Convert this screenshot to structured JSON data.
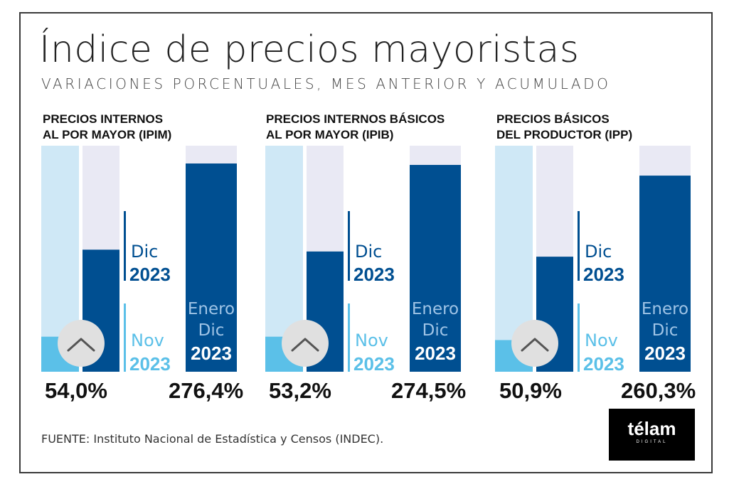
{
  "title": "Índice de precios mayoristas",
  "subtitle": "VARIACIONES PORCENTUALES, MES ANTERIOR Y ACUMULADO",
  "labels": {
    "dic": "Dic",
    "nov": "Nov",
    "year": "2023",
    "enero": "Enero"
  },
  "colors": {
    "light_blue": "#5bc0e8",
    "pale_blue": "#cfe8f6",
    "pale_lavender": "#e9e9f4",
    "dark_blue": "#004f91",
    "circle_gray": "#e0e0e0",
    "chevron": "#555555"
  },
  "chart_data": [
    {
      "type": "bar",
      "title_lines": [
        "PRECIOS INTERNOS",
        "AL POR MAYOR (IPIM)"
      ],
      "monthly": {
        "nov": 15.5,
        "dic": 54.0,
        "ylim": [
          0,
          100
        ]
      },
      "cumulative": {
        "value": 276.4,
        "ylim": [
          0,
          300
        ]
      },
      "value_labels": [
        "54,0%",
        "276,4%"
      ]
    },
    {
      "type": "bar",
      "title_lines": [
        "PRECIOS INTERNOS BÁSICOS",
        "AL POR MAYOR (IPIB)"
      ],
      "monthly": {
        "nov": 15.5,
        "dic": 53.2,
        "ylim": [
          0,
          100
        ]
      },
      "cumulative": {
        "value": 274.5,
        "ylim": [
          0,
          300
        ]
      },
      "value_labels": [
        "53,2%",
        "274,5%"
      ]
    },
    {
      "type": "bar",
      "title_lines": [
        "PRECIOS BÁSICOS",
        "DEL PRODUCTOR (IPP)"
      ],
      "monthly": {
        "nov": 14.0,
        "dic": 50.9,
        "ylim": [
          0,
          100
        ]
      },
      "cumulative": {
        "value": 260.3,
        "ylim": [
          0,
          300
        ]
      },
      "value_labels": [
        "50,9%",
        "260,3%"
      ]
    }
  ],
  "source": "FUENTE: Instituto Nacional de Estadística y Censos (INDEC).",
  "logo": {
    "word": "télam",
    "sub": "DIGITAL"
  }
}
